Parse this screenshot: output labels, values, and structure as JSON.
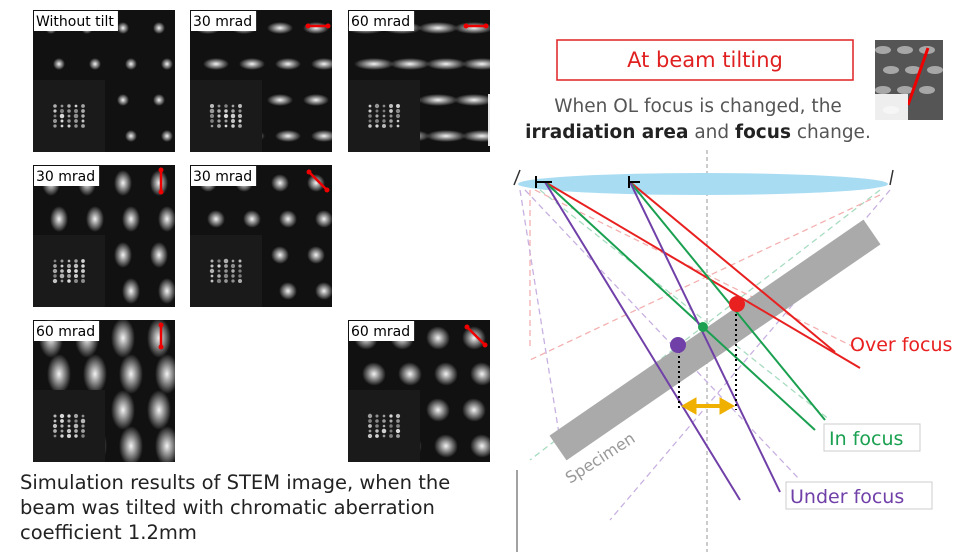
{
  "panels": [
    {
      "label": "Without tilt"
    },
    {
      "label": "30 mrad"
    },
    {
      "label": "60 mrad"
    },
    {
      "label": "30 mrad"
    },
    {
      "label": "30 mrad"
    },
    {
      "label": "60 mrad"
    },
    {
      "label": "60 mrad"
    }
  ],
  "caption": {
    "lines": [
      "Simulation results of STEM image, when the",
      "beam was tilted with chromatic aberration",
      "coefficient 1.2mm"
    ]
  },
  "diagram": {
    "title": "At beam tilting",
    "description": {
      "line1": "When OL focus is changed, the",
      "bold1": "irradiation area",
      "mid": "and",
      "bold2": "focus",
      "end": "change."
    },
    "labels": {
      "over": "Over focus",
      "in": "In focus",
      "under": "Under focus",
      "specimen": "Specimen"
    }
  }
}
